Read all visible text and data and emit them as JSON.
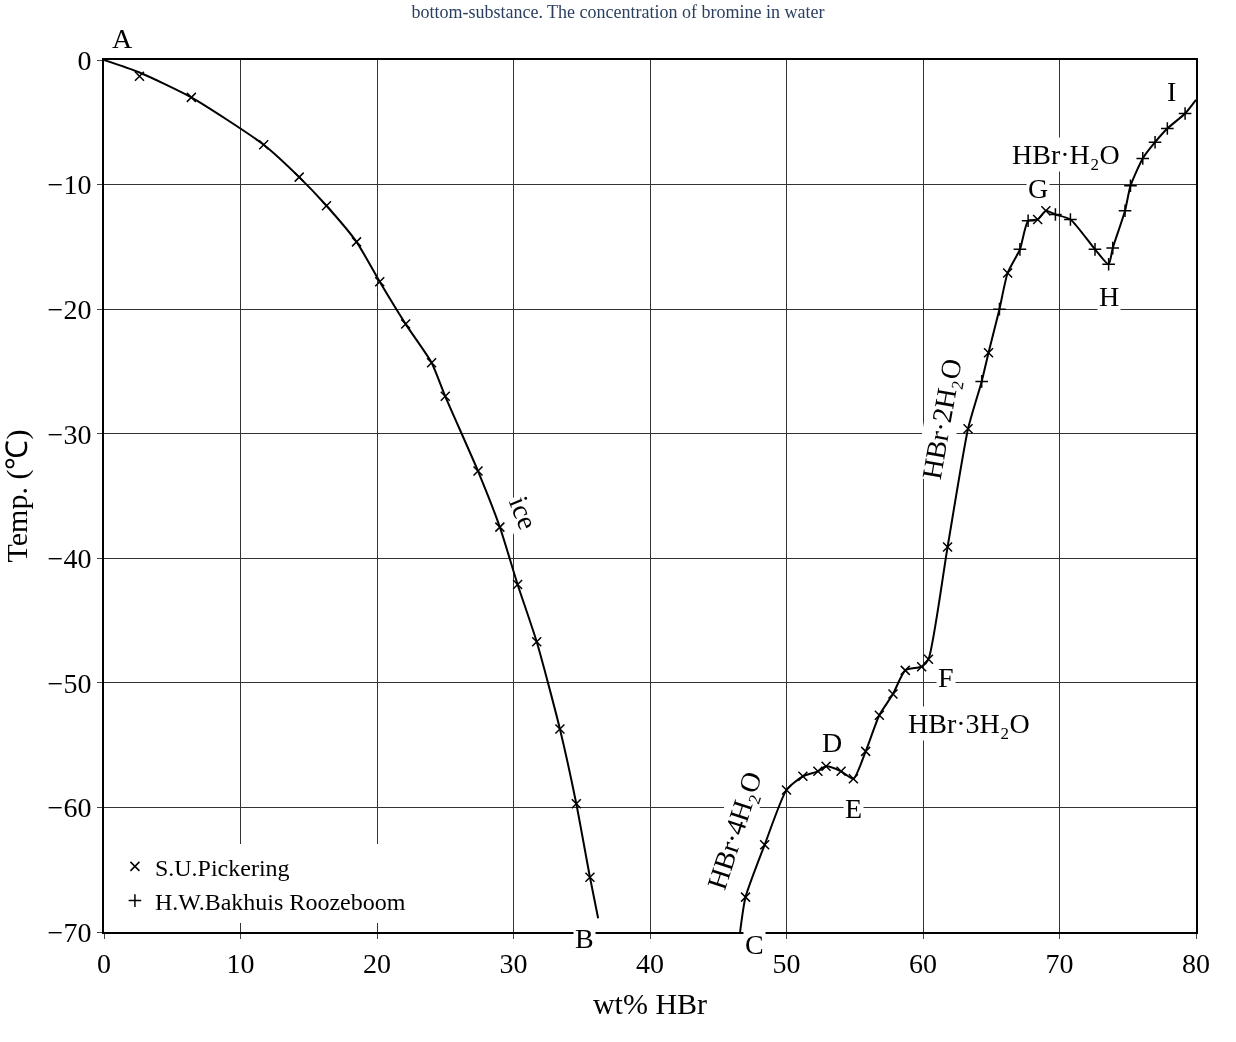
{
  "chart_data": {
    "type": "scatter",
    "title": "bottom-substance. The concentration of bromine in water",
    "xlabel": "wt% HBr",
    "ylabel": "Temp. (℃)",
    "xlim": [
      0,
      80
    ],
    "ylim": [
      -70,
      0
    ],
    "xticks": [
      0,
      10,
      20,
      30,
      40,
      50,
      60,
      70,
      80
    ],
    "yticks": [
      0,
      -10,
      -20,
      -30,
      -40,
      -50,
      -60,
      -70
    ],
    "grid": true,
    "legend": "bottom left",
    "series": [
      {
        "type": "line",
        "color": "#000000",
        "marker": "none",
        "line_style": "solid",
        "x": [
          0,
          2.6,
          6.4,
          11.7,
          14.3,
          16.3,
          18.5,
          20.2,
          22.1,
          24.0,
          25.0,
          27.4,
          29.0,
          30.3,
          31.7,
          33.4,
          34.6,
          35.6,
          36.2,
          null,
          46.6,
          47.0,
          48.4,
          50.0,
          51.2,
          52.3,
          52.9,
          54.0,
          54.9,
          55.8,
          56.8,
          57.8,
          58.7,
          59.9,
          60.4,
          61.8,
          63.3,
          64.3,
          64.8,
          65.6,
          66.2,
          67.1,
          67.7,
          68.4,
          69.0,
          69.7,
          70.8,
          72.6,
          73.6,
          73.9,
          74.8,
          75.2,
          76.1,
          77.0,
          77.9,
          79.2,
          80
        ],
        "values": [
          0,
          -1.0,
          -3.0,
          -6.8,
          -9.4,
          -11.7,
          -14.6,
          -17.8,
          -21.2,
          -24.3,
          -27.0,
          -33.0,
          -37.5,
          -42.1,
          -46.7,
          -53.7,
          -59.7,
          -65.6,
          -68.9,
          null,
          -70,
          -67.2,
          -63.0,
          -58.6,
          -57.5,
          -57.1,
          -56.7,
          -57.1,
          -57.7,
          -55.5,
          -52.6,
          -50.9,
          -49.0,
          -48.7,
          -48.1,
          -39.1,
          -29.6,
          -25.8,
          -23.5,
          -20.0,
          -17.1,
          -15.2,
          -12.9,
          -12.8,
          -12.1,
          -12.4,
          -12.8,
          -15.2,
          -16.4,
          -15.1,
          -12.1,
          -10.1,
          -7.9,
          -6.6,
          -5.5,
          -4.3,
          -3.2
        ]
      },
      {
        "name": "S.U.Pickering",
        "color": "#000000",
        "marker": "x",
        "x": [
          2.6,
          6.4,
          11.7,
          14.3,
          16.3,
          18.5,
          20.2,
          22.1,
          24.0,
          25.0,
          27.4,
          29.0,
          30.3,
          31.7,
          33.4,
          34.6,
          35.6,
          47.0,
          48.4,
          50.0,
          51.2,
          52.3,
          52.9,
          54.0,
          54.9,
          55.8,
          56.8,
          57.8,
          58.7,
          59.9,
          60.4,
          61.8,
          63.3,
          64.8,
          66.2,
          68.4,
          69.0
        ],
        "values": [
          -1.3,
          -3.0,
          -6.8,
          -9.4,
          -11.7,
          -14.6,
          -17.8,
          -21.2,
          -24.3,
          -27.0,
          -33.0,
          -37.5,
          -42.1,
          -46.7,
          -53.7,
          -59.7,
          -65.6,
          -67.2,
          -63.0,
          -58.6,
          -57.5,
          -57.1,
          -56.7,
          -57.1,
          -57.7,
          -55.5,
          -52.6,
          -50.9,
          -49.0,
          -48.7,
          -48.1,
          -39.1,
          -29.6,
          -23.5,
          -17.1,
          -12.8,
          -12.1
        ]
      },
      {
        "name": "H.W.Bakhuis Roozeboom",
        "color": "#000000",
        "marker": "cross",
        "x": [
          64.3,
          65.6,
          67.1,
          67.7,
          69.7,
          70.8,
          72.6,
          73.6,
          73.9,
          74.8,
          75.2,
          76.1,
          77.0,
          77.9,
          79.2
        ],
        "values": [
          -25.8,
          -20.0,
          -15.2,
          -12.9,
          -12.4,
          -12.8,
          -15.2,
          -16.4,
          -15.1,
          -12.1,
          -10.1,
          -7.9,
          -6.6,
          -5.5,
          -4.3
        ]
      }
    ],
    "annotations": [
      {
        "text": "A",
        "x": 0,
        "y": 0
      },
      {
        "text": "B",
        "x": 36.2,
        "y": -68.9
      },
      {
        "text": "C",
        "x": 46.6,
        "y": -70
      },
      {
        "text": "D",
        "x": 52.9,
        "y": -56.7
      },
      {
        "text": "E",
        "x": 54.9,
        "y": -57.7
      },
      {
        "text": "F",
        "x": 60.4,
        "y": -48.1
      },
      {
        "text": "G",
        "x": 69.0,
        "y": -12.1
      },
      {
        "text": "H",
        "x": 73.6,
        "y": -16.4
      },
      {
        "text": "I",
        "x": 79.2,
        "y": -4.3
      },
      {
        "text": "ice",
        "x": 29.0,
        "y": -37.5
      },
      {
        "text": "HBr·4H₂O",
        "x": 48.4,
        "y": -63.0
      },
      {
        "text": "HBr·3H₂O",
        "x": 56.8,
        "y": -52.6
      },
      {
        "text": "HBr·2H₂O",
        "x": 63.3,
        "y": -29.6
      },
      {
        "text": "HBr·H₂O",
        "x": 69.0,
        "y": -12.1
      }
    ]
  }
}
